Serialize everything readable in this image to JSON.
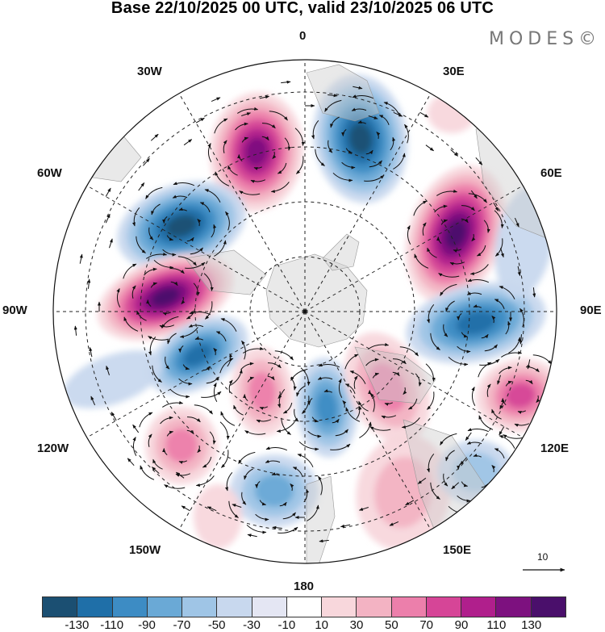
{
  "title": "Base 22/10/2025 00 UTC, valid 23/10/2025 06 UTC",
  "brand": "MODES©",
  "longitude_labels": {
    "n0": "0",
    "e30": "30E",
    "e60": "60E",
    "e90": "90E",
    "e120": "120E",
    "e150": "150E",
    "s180": "180",
    "w150": "150W",
    "w120": "120W",
    "w90": "90W",
    "w60": "60W",
    "w30": "30W"
  },
  "reference_vector": {
    "label": "10"
  },
  "colorbar": {
    "colors": [
      "#1b4f72",
      "#1f6fa8",
      "#3d8cc4",
      "#6aa9d6",
      "#9fc5e6",
      "#c8d8ee",
      "#e4e6f3",
      "#ffffff",
      "#f8d7dc",
      "#f3b3c3",
      "#ec7fab",
      "#d64597",
      "#b01f8c",
      "#7d117f",
      "#4a0f6b"
    ],
    "labels": [
      "-130",
      "-110",
      "-90",
      "-70",
      "-50",
      "-30",
      "-10",
      "10",
      "30",
      "50",
      "70",
      "90",
      "110",
      "130"
    ]
  }
}
